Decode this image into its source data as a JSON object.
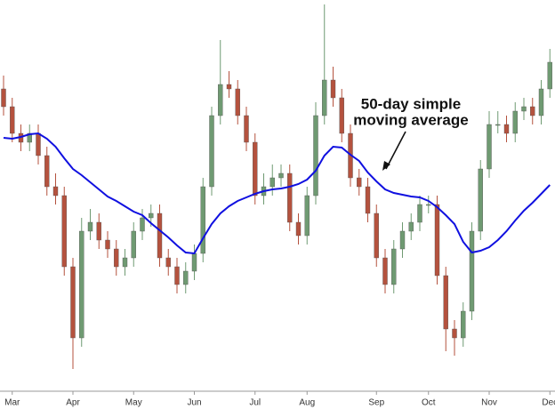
{
  "chart_data": {
    "type": "candlestick",
    "categories": [
      null,
      "Mar",
      null,
      null,
      null,
      null,
      null,
      null,
      "Apr",
      null,
      null,
      null,
      null,
      null,
      null,
      "May",
      null,
      null,
      null,
      null,
      null,
      null,
      "Jun",
      null,
      null,
      null,
      null,
      null,
      null,
      "Jul",
      null,
      null,
      null,
      null,
      null,
      "Aug",
      null,
      null,
      null,
      null,
      null,
      null,
      null,
      "Sep",
      null,
      null,
      null,
      null,
      null,
      "Oct",
      null,
      null,
      null,
      null,
      null,
      null,
      "Nov",
      null,
      null,
      null,
      null,
      null,
      null,
      "Dec"
    ],
    "open": [
      340,
      320,
      290,
      280,
      290,
      265,
      230,
      220,
      140,
      60,
      180,
      190,
      170,
      160,
      140,
      150,
      180,
      195,
      200,
      150,
      140,
      120,
      135,
      155,
      230,
      310,
      345,
      340,
      310,
      280,
      220,
      230,
      240,
      245,
      190,
      175,
      220,
      310,
      350,
      330,
      290,
      240,
      230,
      200,
      150,
      120,
      160,
      180,
      190,
      210,
      210,
      130,
      70,
      60,
      90,
      180,
      250,
      300,
      300,
      290,
      315,
      320,
      310,
      340
    ],
    "high": [
      355,
      330,
      300,
      300,
      300,
      275,
      245,
      230,
      150,
      195,
      205,
      200,
      180,
      170,
      160,
      190,
      205,
      210,
      210,
      160,
      150,
      145,
      165,
      240,
      320,
      395,
      360,
      350,
      320,
      290,
      245,
      255,
      255,
      255,
      200,
      230,
      325,
      435,
      365,
      340,
      300,
      250,
      240,
      210,
      160,
      170,
      190,
      200,
      220,
      220,
      220,
      140,
      80,
      100,
      190,
      260,
      315,
      315,
      310,
      325,
      330,
      330,
      350,
      385
    ],
    "low": [
      310,
      280,
      270,
      270,
      255,
      220,
      210,
      130,
      25,
      50,
      170,
      160,
      150,
      130,
      130,
      140,
      170,
      185,
      140,
      130,
      110,
      110,
      125,
      145,
      220,
      300,
      330,
      300,
      270,
      210,
      210,
      220,
      230,
      180,
      165,
      165,
      210,
      300,
      320,
      280,
      230,
      220,
      190,
      140,
      110,
      110,
      150,
      170,
      180,
      200,
      120,
      45,
      40,
      50,
      80,
      170,
      240,
      290,
      280,
      280,
      305,
      300,
      300,
      330
    ],
    "close": [
      320,
      290,
      280,
      290,
      265,
      230,
      220,
      140,
      60,
      180,
      190,
      170,
      160,
      140,
      150,
      180,
      195,
      200,
      150,
      140,
      120,
      135,
      155,
      230,
      310,
      345,
      340,
      310,
      280,
      220,
      230,
      240,
      245,
      190,
      175,
      220,
      310,
      350,
      330,
      290,
      240,
      230,
      200,
      150,
      120,
      160,
      180,
      190,
      210,
      210,
      130,
      70,
      60,
      90,
      180,
      250,
      300,
      300,
      290,
      315,
      320,
      310,
      340,
      370
    ],
    "up_color": "#6f9a72",
    "down_color": "#b4523e",
    "moving_average": {
      "color": "#1010e0",
      "values": [
        285,
        284,
        286,
        289,
        290,
        284,
        275,
        262,
        250,
        243,
        235,
        227,
        219,
        214,
        208,
        202,
        198,
        189,
        181,
        173,
        164,
        156,
        155,
        172,
        188,
        200,
        208,
        214,
        218,
        222,
        225,
        227,
        228,
        230,
        233,
        238,
        248,
        265,
        275,
        274,
        266,
        259,
        246,
        236,
        227,
        223,
        221,
        219,
        218,
        214,
        207,
        198,
        188,
        168,
        156,
        158,
        162,
        170,
        180,
        192,
        203,
        212,
        222,
        232
      ]
    },
    "annotation": [
      "50-day simple",
      "moving average"
    ],
    "ylim": [
      0,
      440
    ]
  }
}
